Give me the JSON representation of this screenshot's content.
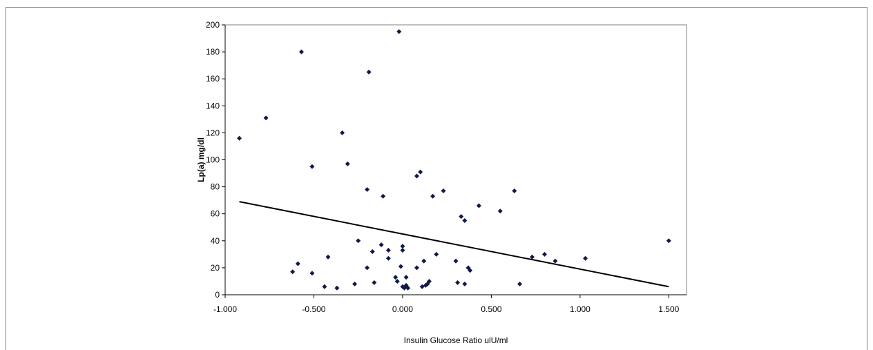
{
  "chart_data": {
    "type": "scatter",
    "title": "",
    "xlabel": "Insulin Glucose Ratio ulU/ml",
    "ylabel": "Lp(a) mg/dl",
    "xlim": [
      -1.0,
      1.6
    ],
    "ylim": [
      0,
      200
    ],
    "x_ticks": [
      -1.0,
      -0.5,
      0.0,
      0.5,
      1.0,
      1.5
    ],
    "x_tick_labels": [
      "-1.000",
      "-0.500",
      "0.000",
      "0.500",
      "1.000",
      "1.500"
    ],
    "y_ticks": [
      0,
      20,
      40,
      60,
      80,
      100,
      120,
      140,
      160,
      180,
      200
    ],
    "y_tick_labels": [
      "0",
      "20",
      "40",
      "60",
      "80",
      "100",
      "120",
      "140",
      "160",
      "180",
      "200"
    ],
    "grid": false,
    "legend": "none",
    "marker_color": "#0f1a4a",
    "trendline_color": "#000000",
    "points": [
      [
        -0.92,
        116
      ],
      [
        -0.77,
        131
      ],
      [
        -0.57,
        180
      ],
      [
        -0.51,
        95
      ],
      [
        -0.34,
        120
      ],
      [
        -0.31,
        97
      ],
      [
        -0.19,
        165
      ],
      [
        -0.2,
        78
      ],
      [
        -0.11,
        73
      ],
      [
        -0.02,
        195
      ],
      [
        0.08,
        88
      ],
      [
        0.1,
        91
      ],
      [
        0.17,
        73
      ],
      [
        0.23,
        77
      ],
      [
        0.63,
        77
      ],
      [
        0.43,
        66
      ],
      [
        0.55,
        62
      ],
      [
        0.33,
        58
      ],
      [
        0.35,
        55
      ],
      [
        1.5,
        40
      ],
      [
        -0.62,
        17
      ],
      [
        -0.59,
        23
      ],
      [
        -0.51,
        16
      ],
      [
        -0.44,
        6
      ],
      [
        -0.42,
        28
      ],
      [
        -0.37,
        5
      ],
      [
        -0.27,
        8
      ],
      [
        -0.25,
        40
      ],
      [
        -0.2,
        20
      ],
      [
        -0.17,
        32
      ],
      [
        -0.16,
        9
      ],
      [
        -0.12,
        37
      ],
      [
        -0.08,
        33
      ],
      [
        -0.08,
        27
      ],
      [
        -0.04,
        13
      ],
      [
        -0.03,
        10
      ],
      [
        -0.01,
        21
      ],
      [
        0.0,
        36
      ],
      [
        0.0,
        33
      ],
      [
        0.0,
        6
      ],
      [
        0.01,
        5
      ],
      [
        0.02,
        13
      ],
      [
        0.02,
        7
      ],
      [
        0.03,
        5
      ],
      [
        0.08,
        20
      ],
      [
        0.11,
        6
      ],
      [
        0.12,
        25
      ],
      [
        0.13,
        7
      ],
      [
        0.14,
        8
      ],
      [
        0.15,
        10
      ],
      [
        0.19,
        30
      ],
      [
        0.3,
        25
      ],
      [
        0.31,
        9
      ],
      [
        0.35,
        8
      ],
      [
        0.37,
        20
      ],
      [
        0.38,
        18
      ],
      [
        0.66,
        8
      ],
      [
        0.73,
        28
      ],
      [
        0.8,
        30
      ],
      [
        0.86,
        25
      ],
      [
        1.03,
        27
      ]
    ],
    "trendline": {
      "x": [
        -0.92,
        1.5
      ],
      "y": [
        69,
        6
      ]
    }
  }
}
